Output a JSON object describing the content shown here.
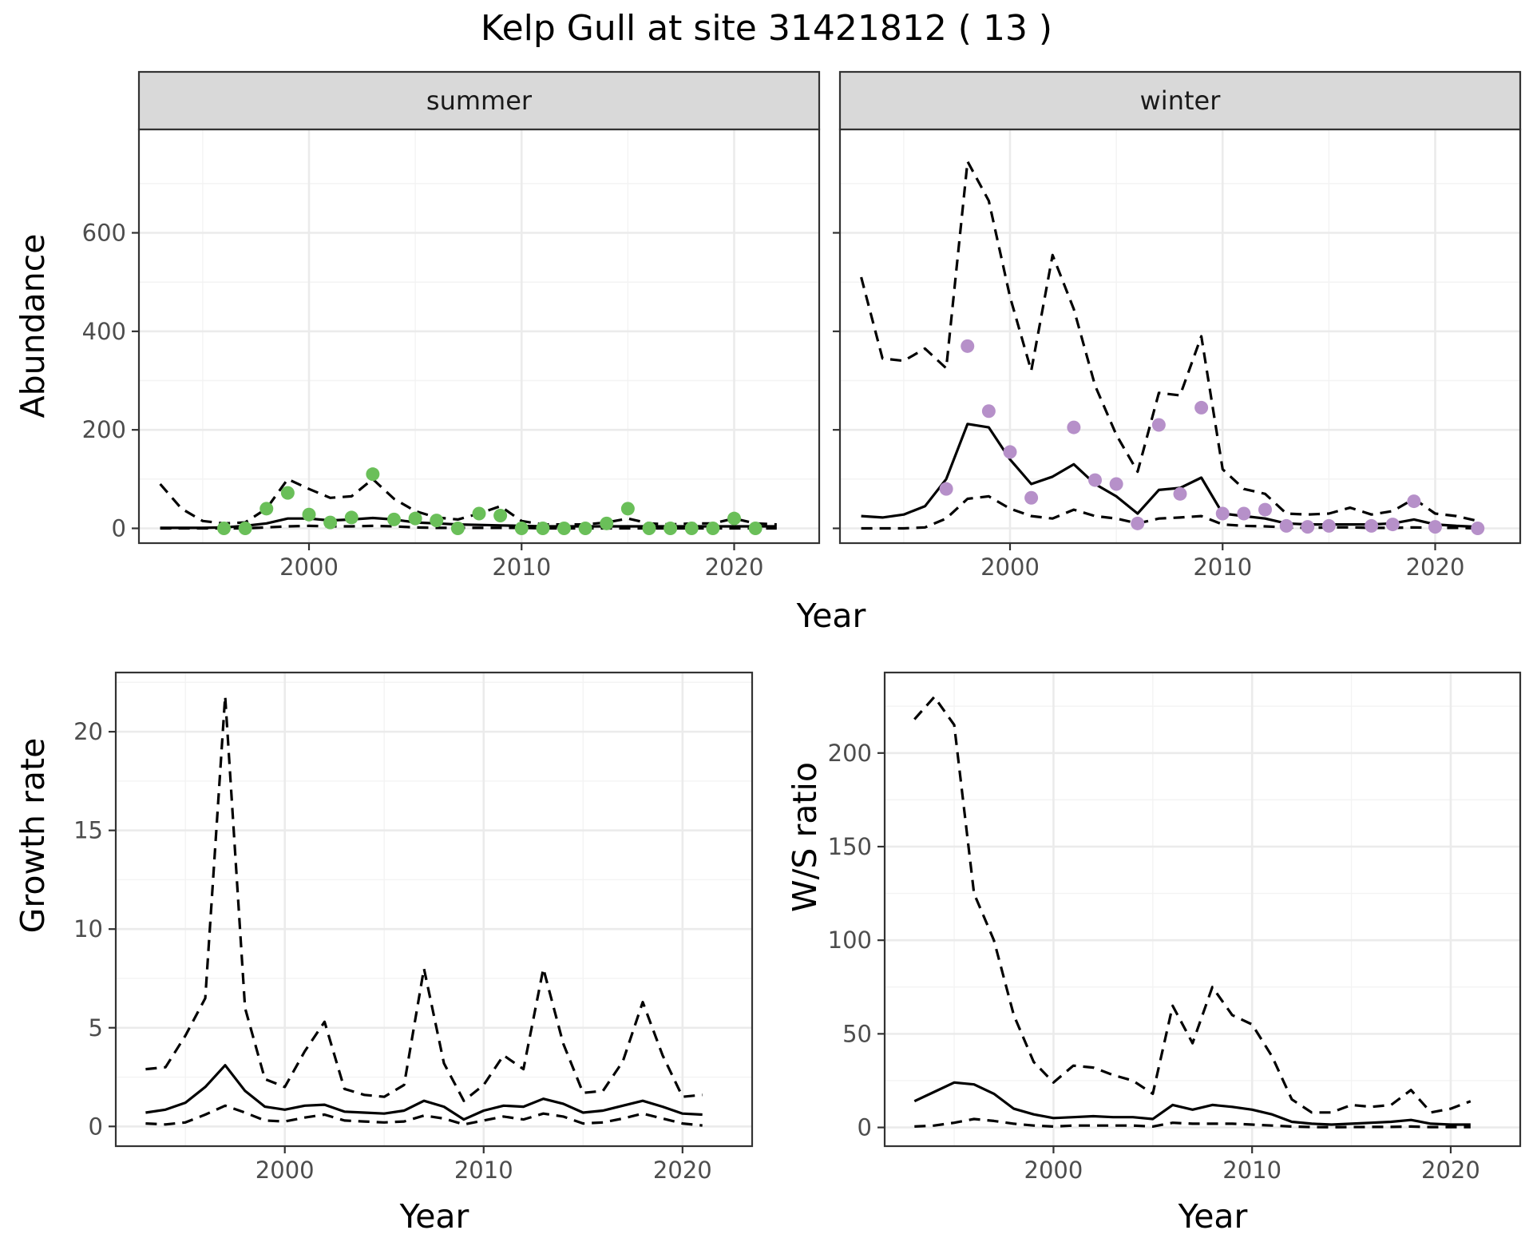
{
  "title": "Kelp Gull at site 31421812 ( 13 )",
  "colors": {
    "summer_points": "#6abf59",
    "winter_points": "#b690c9",
    "lines": "#000000"
  },
  "chart_data": [
    {
      "type": "line",
      "panel": "summer",
      "xlabel": "Year",
      "ylabel": "Abundance",
      "xlim": [
        1992,
        2024
      ],
      "ylim": [
        -30,
        810
      ],
      "xticks": [
        2000,
        2010,
        2020
      ],
      "yticks": [
        0,
        200,
        400,
        600
      ],
      "x": [
        1993,
        1994,
        1995,
        1996,
        1997,
        1998,
        1999,
        2000,
        2001,
        2002,
        2003,
        2004,
        2005,
        2006,
        2007,
        2008,
        2009,
        2010,
        2011,
        2012,
        2013,
        2014,
        2015,
        2016,
        2017,
        2018,
        2019,
        2020,
        2021,
        2022
      ],
      "mean": [
        1,
        1,
        1,
        2,
        5,
        10,
        20,
        20,
        16,
        18,
        21,
        18,
        12,
        10,
        8,
        7,
        6,
        5,
        4,
        4,
        4,
        4,
        4,
        4,
        4,
        4,
        4,
        4,
        4,
        4
      ],
      "upper": [
        90,
        40,
        15,
        10,
        12,
        40,
        100,
        80,
        62,
        65,
        100,
        60,
        35,
        22,
        18,
        30,
        45,
        15,
        8,
        8,
        8,
        12,
        20,
        10,
        8,
        10,
        10,
        20,
        10,
        8
      ],
      "lower": [
        0,
        0,
        0,
        0,
        0,
        2,
        4,
        5,
        4,
        4,
        5,
        4,
        2,
        1,
        1,
        1,
        1,
        1,
        0,
        0,
        0,
        0,
        0,
        0,
        0,
        0,
        0,
        0,
        0,
        0
      ],
      "points_x": [
        1996,
        1997,
        1998,
        1999,
        2000,
        2001,
        2002,
        2003,
        2004,
        2005,
        2006,
        2007,
        2008,
        2009,
        2010,
        2011,
        2012,
        2013,
        2014,
        2015,
        2016,
        2017,
        2018,
        2019,
        2020,
        2021
      ],
      "points_y": [
        0,
        0,
        40,
        72,
        28,
        12,
        22,
        110,
        18,
        20,
        16,
        0,
        30,
        26,
        0,
        0,
        0,
        0,
        10,
        40,
        0,
        0,
        0,
        0,
        20,
        0
      ]
    },
    {
      "type": "line",
      "panel": "winter",
      "xlabel": "Year",
      "ylabel": "Abundance",
      "xlim": [
        1992,
        2024
      ],
      "ylim": [
        -30,
        810
      ],
      "xticks": [
        2000,
        2010,
        2020
      ],
      "yticks": [
        0,
        200,
        400,
        600
      ],
      "x": [
        1993,
        1994,
        1995,
        1996,
        1997,
        1998,
        1999,
        2000,
        2001,
        2002,
        2003,
        2004,
        2005,
        2006,
        2007,
        2008,
        2009,
        2010,
        2011,
        2012,
        2013,
        2014,
        2015,
        2016,
        2017,
        2018,
        2019,
        2020,
        2021,
        2022
      ],
      "mean": [
        25,
        22,
        28,
        45,
        100,
        212,
        205,
        140,
        90,
        105,
        130,
        90,
        65,
        30,
        78,
        82,
        103,
        30,
        25,
        20,
        10,
        8,
        8,
        8,
        8,
        10,
        18,
        8,
        5,
        3
      ],
      "upper": [
        510,
        345,
        340,
        365,
        325,
        745,
        665,
        470,
        320,
        555,
        445,
        290,
        190,
        115,
        275,
        270,
        390,
        120,
        80,
        70,
        30,
        28,
        30,
        42,
        28,
        35,
        60,
        30,
        25,
        15
      ],
      "lower": [
        0,
        0,
        0,
        2,
        20,
        60,
        65,
        40,
        25,
        20,
        38,
        25,
        20,
        10,
        20,
        22,
        25,
        8,
        5,
        4,
        2,
        1,
        2,
        2,
        1,
        1,
        2,
        1,
        1,
        0
      ],
      "points_x": [
        1997,
        1998,
        1999,
        2000,
        2001,
        2003,
        2004,
        2005,
        2006,
        2007,
        2008,
        2009,
        2010,
        2011,
        2012,
        2013,
        2014,
        2015,
        2017,
        2018,
        2019,
        2020,
        2022
      ],
      "points_y": [
        80,
        370,
        238,
        155,
        62,
        205,
        98,
        90,
        10,
        210,
        70,
        245,
        30,
        30,
        38,
        5,
        3,
        5,
        5,
        8,
        55,
        3,
        0
      ]
    },
    {
      "type": "line",
      "panel": "growth",
      "xlabel": "Year",
      "ylabel": "Growth rate",
      "xlim": [
        1991.5,
        2023.5
      ],
      "ylim": [
        -1,
        23
      ],
      "xticks": [
        2000,
        2010,
        2020
      ],
      "yticks": [
        0,
        5,
        10,
        15,
        20
      ],
      "x": [
        1993,
        1994,
        1995,
        1996,
        1997,
        1998,
        1999,
        2000,
        2001,
        2002,
        2003,
        2004,
        2005,
        2006,
        2007,
        2008,
        2009,
        2010,
        2011,
        2012,
        2013,
        2014,
        2015,
        2016,
        2017,
        2018,
        2019,
        2020,
        2021
      ],
      "mean": [
        0.7,
        0.85,
        1.2,
        2.0,
        3.1,
        1.8,
        1.0,
        0.85,
        1.05,
        1.1,
        0.75,
        0.7,
        0.65,
        0.8,
        1.3,
        1.0,
        0.35,
        0.8,
        1.05,
        1.0,
        1.4,
        1.15,
        0.7,
        0.8,
        1.05,
        1.3,
        1.0,
        0.65,
        0.6
      ],
      "upper": [
        2.9,
        3.0,
        4.6,
        6.5,
        21.8,
        6.0,
        2.4,
        2.0,
        3.8,
        5.3,
        1.9,
        1.6,
        1.5,
        2.1,
        8.0,
        3.2,
        1.3,
        2.1,
        3.6,
        2.9,
        8.0,
        4.2,
        1.7,
        1.8,
        3.3,
        6.3,
        3.6,
        1.5,
        1.6
      ],
      "lower": [
        0.15,
        0.1,
        0.2,
        0.6,
        1.05,
        0.7,
        0.3,
        0.25,
        0.45,
        0.6,
        0.3,
        0.25,
        0.2,
        0.25,
        0.55,
        0.4,
        0.1,
        0.3,
        0.5,
        0.35,
        0.65,
        0.5,
        0.15,
        0.2,
        0.4,
        0.65,
        0.4,
        0.15,
        0.05
      ]
    },
    {
      "type": "line",
      "panel": "ratio",
      "xlabel": "Year",
      "ylabel": "W/S ratio",
      "xlim": [
        1991.5,
        2023.5
      ],
      "ylim": [
        -10,
        243
      ],
      "xticks": [
        2000,
        2010,
        2020
      ],
      "yticks": [
        0,
        50,
        100,
        150,
        200
      ],
      "x": [
        1993,
        1994,
        1995,
        1996,
        1997,
        1998,
        1999,
        2000,
        2001,
        2002,
        2003,
        2004,
        2005,
        2006,
        2007,
        2008,
        2009,
        2010,
        2011,
        2012,
        2013,
        2014,
        2015,
        2016,
        2017,
        2018,
        2019,
        2020,
        2021
      ],
      "mean": [
        14,
        19,
        24,
        23,
        18,
        10,
        7,
        5,
        5.5,
        6,
        5.5,
        5.5,
        4.5,
        12,
        9.5,
        12,
        11,
        9.5,
        7,
        3,
        2,
        1.5,
        2,
        2.5,
        3,
        4,
        2,
        1.5,
        1.5
      ],
      "upper": [
        218,
        230,
        215,
        125,
        100,
        60,
        35,
        24,
        33,
        32,
        28,
        25,
        18,
        65,
        45,
        75,
        60,
        55,
        38,
        15,
        8,
        8,
        12,
        11,
        12,
        20,
        8,
        10,
        14
      ],
      "lower": [
        0.5,
        1,
        2.5,
        4.5,
        3.5,
        2,
        1,
        0.5,
        1,
        1,
        1,
        1,
        0.5,
        2.5,
        2,
        2,
        2,
        1.5,
        1,
        0.5,
        0.2,
        0.1,
        0.2,
        0.3,
        0.3,
        0.5,
        0.2,
        0.2,
        0.2
      ]
    }
  ]
}
